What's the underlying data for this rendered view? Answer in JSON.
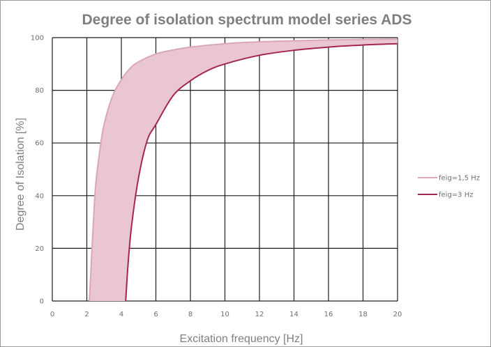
{
  "chart_data": {
    "type": "line",
    "title": "Degree of isolation spectrum model series ADS",
    "xlabel": "Excitation frequency [Hz]",
    "ylabel": "Degree of Isolation [%]",
    "xlim": [
      0,
      20
    ],
    "ylim": [
      0,
      100
    ],
    "x_ticks": [
      "0",
      "2",
      "4",
      "6",
      "8",
      "10",
      "12",
      "14",
      "16",
      "18",
      "20"
    ],
    "y_ticks": [
      "0",
      "20",
      "40",
      "60",
      "80",
      "100"
    ],
    "grid": true,
    "legend_position": "right",
    "band_fill": "#e9c6d1",
    "series": [
      {
        "name": "feig=1,5 Hz",
        "color": "#dba6b8",
        "x": [
          2.15,
          2.3,
          2.5,
          2.75,
          3.0,
          3.5,
          4.0,
          4.5,
          5.0,
          6.0,
          7.0,
          8.0,
          10.0,
          12.0,
          14.0,
          16.0,
          18.0,
          20.0
        ],
        "values": [
          0,
          20,
          43,
          57,
          67,
          78,
          84,
          88.3,
          90.8,
          93.8,
          95.3,
          96.4,
          97.7,
          98.4,
          98.8,
          99.1,
          99.3,
          99.4
        ]
      },
      {
        "name": "feig=3 Hz",
        "color": "#a3264f",
        "x": [
          4.25,
          4.4,
          4.6,
          5.0,
          5.5,
          6.0,
          7.0,
          8.0,
          9.0,
          10.0,
          12.0,
          14.0,
          16.0,
          18.0,
          20.0
        ],
        "values": [
          0,
          15,
          29,
          47,
          61,
          67,
          78,
          83.6,
          87.5,
          90.0,
          93.3,
          95.2,
          96.4,
          97.2,
          97.7
        ]
      }
    ]
  }
}
